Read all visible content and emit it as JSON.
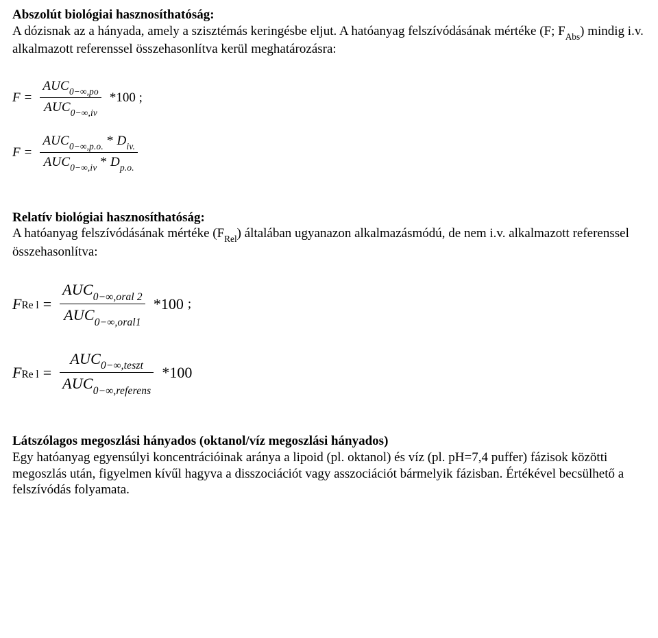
{
  "doc": {
    "text_color": "#000000",
    "bg_color": "#ffffff",
    "base_font_size_pt": 14,
    "font_family": "Times New Roman"
  },
  "section1": {
    "heading": "Abszolút biológiai hasznosíthatóság:",
    "body": "A dózisnak az a hányada, amely a szisztémás keringésbe eljut. A hatóanyag felszívódásának mértéke (F; F",
    "body_sub": "Abs",
    "body_tail": ") mindig  i.v. alkalmazott referenssel összehasonlítva kerül meghatározásra:"
  },
  "formula1": {
    "lhs": "F",
    "eq": "=",
    "num_main": "AUC",
    "num_sub": "0−∞,po",
    "den_main": "AUC",
    "den_sub": "0−∞,iv",
    "tail": "*100 ;"
  },
  "formula2": {
    "lhs": "F",
    "eq": "=",
    "num_a_main": "AUC",
    "num_a_sub": "0−∞,p.o.",
    "num_star": " * ",
    "num_b_main": "D",
    "num_b_sub": "iv.",
    "den_a_main": "AUC",
    "den_a_sub": "0−∞,iv",
    "den_star": " * ",
    "den_b_main": "D",
    "den_b_sub": "p.o."
  },
  "section2": {
    "heading": "Relatív biológiai hasznosíthatóság:",
    "body": "A hatóanyag felszívódásának mértéke (F",
    "body_sub": "Rel",
    "body_tail": ") általában ugyanazon alkalmazásmódú, de nem i.v. alkalmazott referenssel összehasonlítva:"
  },
  "formula3": {
    "lhs_main": "F",
    "lhs_sub": "Re l",
    "eq": "=",
    "num_main": "AUC",
    "num_sub": "0−∞,oral 2",
    "den_main": "AUC",
    "den_sub": "0−∞,oral1",
    "tail": "*100",
    "semi": ";"
  },
  "formula4": {
    "lhs_main": "F",
    "lhs_sub": "Re l",
    "eq": "=",
    "num_main": "AUC",
    "num_sub": "0−∞,teszt",
    "den_main": "AUC",
    "den_sub": "0−∞,referens",
    "tail": "*100"
  },
  "section3": {
    "heading": "Látszólagos megoszlási hányados (oktanol/víz megoszlási hányados)",
    "body": "Egy hatóanyag egyensúlyi koncentrációinak aránya a lipoid (pl. oktanol) és víz (pl. pH=7,4 puffer) fázisok közötti megoszlás után, figyelmen kívűl hagyva a disszociációt vagy asszociációt bármelyik fázisban. Értékével becsülhető a felszívódás folyamata."
  }
}
